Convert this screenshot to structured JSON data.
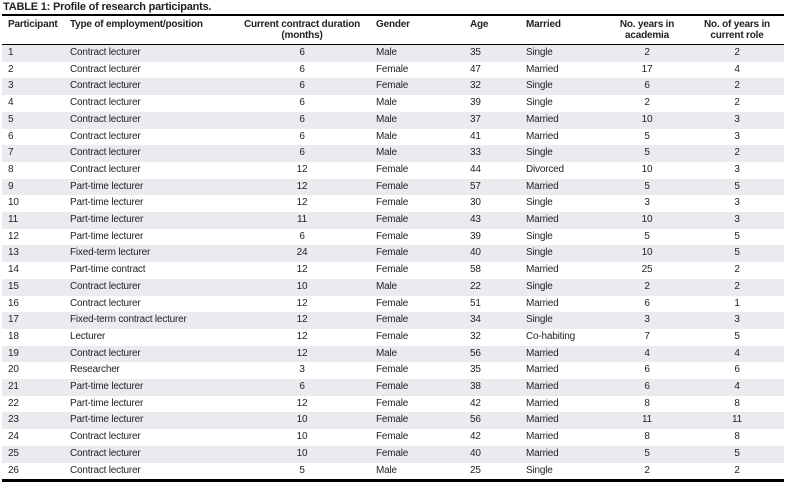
{
  "table": {
    "title": "TABLE 1: Profile of research participants.",
    "columns": [
      {
        "id": "participant",
        "lines": [
          "Participant"
        ],
        "align": "left"
      },
      {
        "id": "employment_type",
        "lines": [
          "Type of employment/position"
        ],
        "align": "left"
      },
      {
        "id": "contract_duration_months",
        "lines": [
          "Current contract duration",
          "(months)"
        ],
        "align": "center"
      },
      {
        "id": "gender",
        "lines": [
          "Gender"
        ],
        "align": "left"
      },
      {
        "id": "age",
        "lines": [
          "Age"
        ],
        "align": "left"
      },
      {
        "id": "married",
        "lines": [
          "Married"
        ],
        "align": "left"
      },
      {
        "id": "years_in_academia",
        "lines": [
          "No. years in",
          "academia"
        ],
        "align": "center"
      },
      {
        "id": "years_in_current_role",
        "lines": [
          "No. of years in",
          "current role"
        ],
        "align": "center"
      }
    ],
    "rows": [
      [
        "1",
        "Contract lecturer",
        "6",
        "Male",
        "35",
        "Single",
        "2",
        "2"
      ],
      [
        "2",
        "Contract lecturer",
        "6",
        "Female",
        "47",
        "Married",
        "17",
        "4"
      ],
      [
        "3",
        "Contract lecturer",
        "6",
        "Female",
        "32",
        "Single",
        "6",
        "2"
      ],
      [
        "4",
        "Contract lecturer",
        "6",
        "Male",
        "39",
        "Single",
        "2",
        "2"
      ],
      [
        "5",
        "Contract lecturer",
        "6",
        "Male",
        "37",
        "Married",
        "10",
        "3"
      ],
      [
        "6",
        "Contract lecturer",
        "6",
        "Male",
        "41",
        "Married",
        "5",
        "3"
      ],
      [
        "7",
        "Contract lecturer",
        "6",
        "Male",
        "33",
        "Single",
        "5",
        "2"
      ],
      [
        "8",
        "Contract lecturer",
        "12",
        "Female",
        "44",
        "Divorced",
        "10",
        "3"
      ],
      [
        "9",
        "Part-time lecturer",
        "12",
        "Female",
        "57",
        "Married",
        "5",
        "5"
      ],
      [
        "10",
        "Part-time lecturer",
        "12",
        "Female",
        "30",
        "Single",
        "3",
        "3"
      ],
      [
        "11",
        "Part-time lecturer",
        "11",
        "Female",
        "43",
        "Married",
        "10",
        "3"
      ],
      [
        "12",
        "Part-time lecturer",
        "6",
        "Female",
        "39",
        "Single",
        "5",
        "5"
      ],
      [
        "13",
        "Fixed-term lecturer",
        "24",
        "Female",
        "40",
        "Single",
        "10",
        "5"
      ],
      [
        "14",
        "Part-time contract",
        "12",
        "Female",
        "58",
        "Married",
        "25",
        "2"
      ],
      [
        "15",
        "Contract lecturer",
        "10",
        "Male",
        "22",
        "Single",
        "2",
        "2"
      ],
      [
        "16",
        "Contract lecturer",
        "12",
        "Female",
        "51",
        "Married",
        "6",
        "1"
      ],
      [
        "17",
        "Fixed-term contract lecturer",
        "12",
        "Female",
        "34",
        "Single",
        "3",
        "3"
      ],
      [
        "18",
        "Lecturer",
        "12",
        "Female",
        "32",
        "Co-habiting",
        "7",
        "5"
      ],
      [
        "19",
        "Contract lecturer",
        "12",
        "Male",
        "56",
        "Married",
        "4",
        "4"
      ],
      [
        "20",
        "Researcher",
        "3",
        "Female",
        "35",
        "Married",
        "6",
        "6"
      ],
      [
        "21",
        "Part-time lecturer",
        "6",
        "Female",
        "38",
        "Married",
        "6",
        "4"
      ],
      [
        "22",
        "Part-time lecturer",
        "12",
        "Female",
        "42",
        "Married",
        "8",
        "8"
      ],
      [
        "23",
        "Part-time lecturer",
        "10",
        "Female",
        "56",
        "Married",
        "11",
        "11"
      ],
      [
        "24",
        "Contract lecturer",
        "10",
        "Female",
        "42",
        "Married",
        "8",
        "8"
      ],
      [
        "25",
        "Contract lecturer",
        "10",
        "Female",
        "40",
        "Married",
        "5",
        "5"
      ],
      [
        "26",
        "Contract lecturer",
        "5",
        "Male",
        "25",
        "Single",
        "2",
        "2"
      ]
    ]
  },
  "colors": {
    "stripe": "#eaebef",
    "rule": "#000000",
    "text": "#231f20",
    "background": "#ffffff"
  }
}
